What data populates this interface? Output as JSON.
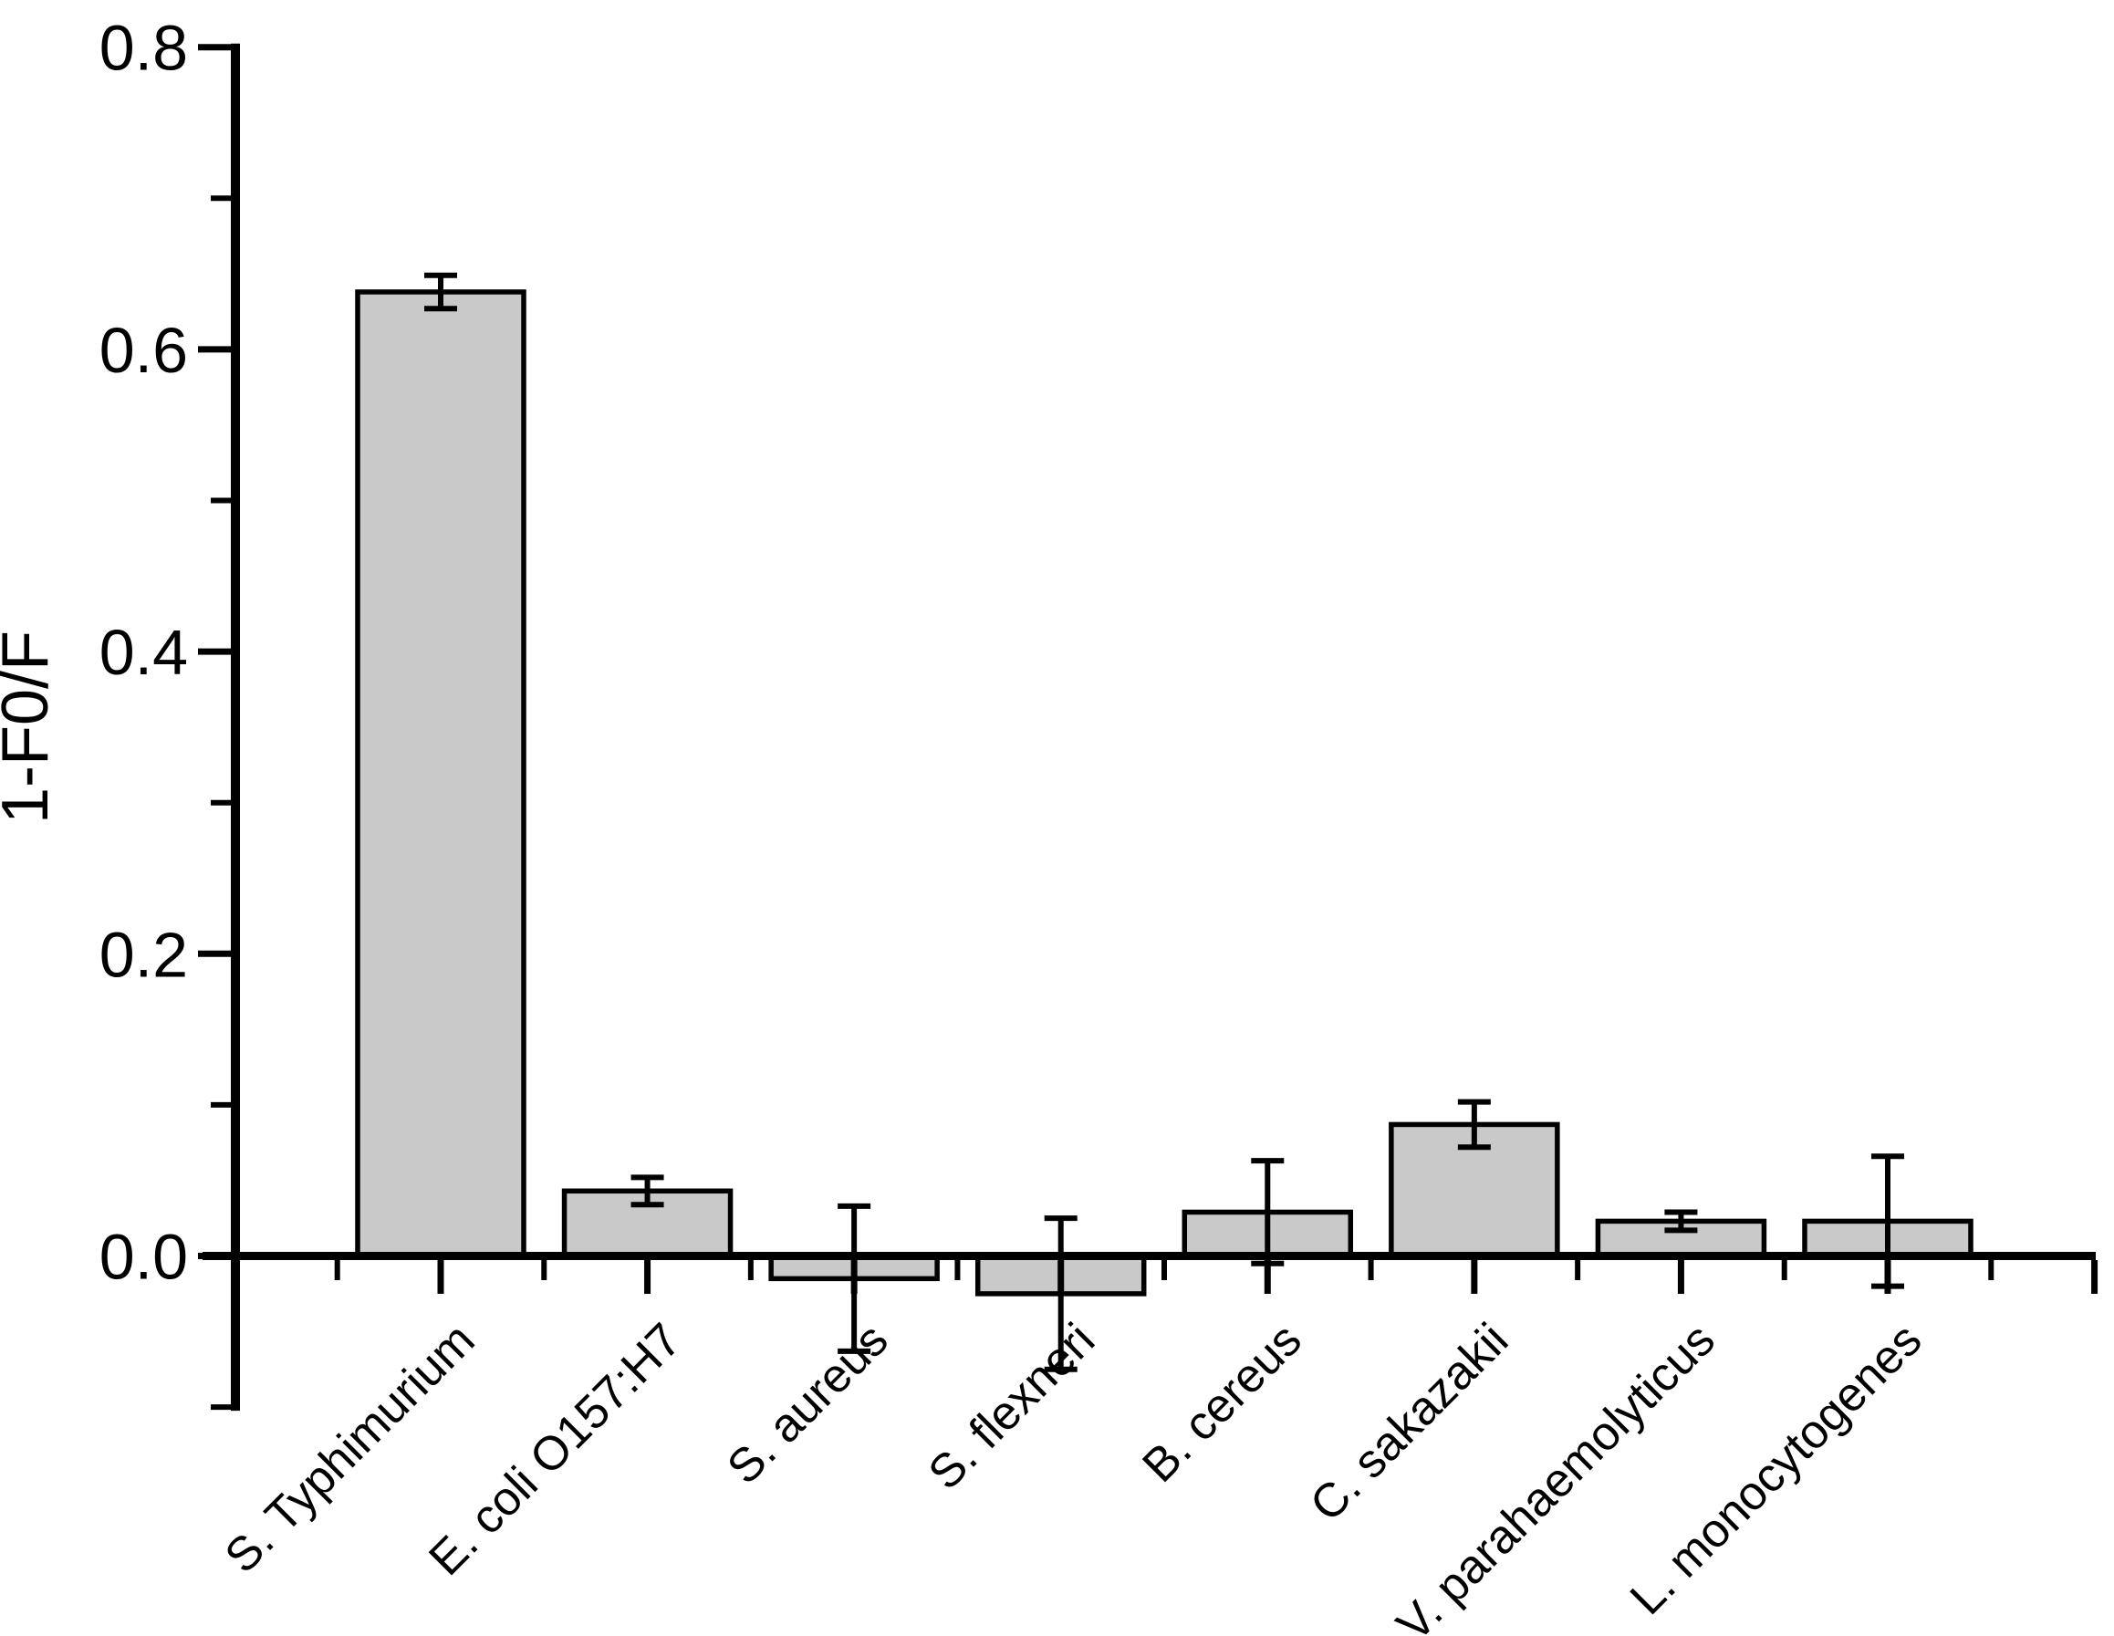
{
  "figure": {
    "background": "#ffffff",
    "bar_fill": "#c9c9c9",
    "line_color": "#000000"
  },
  "chart_data": {
    "type": "bar",
    "title": "",
    "xlabel": "",
    "ylabel": "1-F0/F",
    "categories": [
      "S. Typhimurium",
      "E. coli O157:H7",
      "S. aureus",
      "S. flexneri",
      "B. cereus",
      "C. sakazakii",
      "V. parahaemolyticus",
      "L. monocytogenes"
    ],
    "values": [
      0.638,
      0.043,
      -0.015,
      -0.025,
      0.029,
      0.087,
      0.023,
      0.023
    ],
    "errors": [
      0.011,
      0.009,
      0.048,
      0.05,
      0.034,
      0.015,
      0.006,
      0.043
    ],
    "ylim": [
      -0.1,
      0.8
    ],
    "ytick_values": [
      0.0,
      0.2,
      0.4,
      0.6,
      0.8
    ],
    "ytick_labels": [
      "0.0",
      "0.2",
      "0.4",
      "0.6",
      "0.8"
    ],
    "minor_ytick_values": [
      -0.1,
      0.1,
      0.3,
      0.5,
      0.7
    ],
    "grid": false,
    "legend": "none",
    "error_bars": true,
    "bar_edge_color": "#000000",
    "x_label_rotation_deg": -45
  }
}
